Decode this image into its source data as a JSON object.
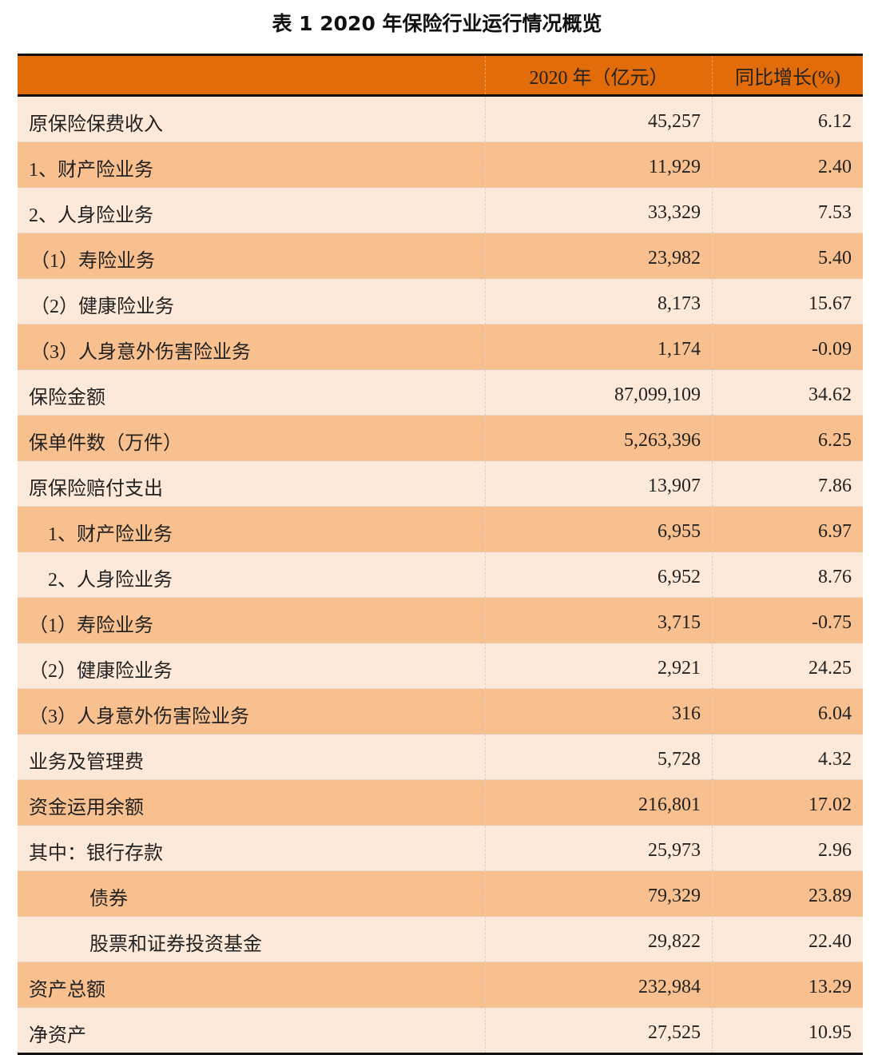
{
  "title": "表 1   2020 年保险行业运行情况概览",
  "columns": [
    "",
    "2020 年（亿元）",
    "同比增长(%)"
  ],
  "colors": {
    "header": "#e36c0a",
    "row_light": "#fde9d9",
    "row_dark": "#f8c08f"
  },
  "rows": [
    {
      "label": "原保险保费收入",
      "value": "45,257",
      "growth": "6.12",
      "indent": 0
    },
    {
      "label": "1、财产险业务",
      "value": "11,929",
      "growth": "2.40",
      "indent": 0
    },
    {
      "label": "2、人身险业务",
      "value": "33,329",
      "growth": "7.53",
      "indent": 0
    },
    {
      "label": "（1）寿险业务",
      "value": "23,982",
      "growth": "5.40",
      "indent": 1
    },
    {
      "label": "（2）健康险业务",
      "value": "8,173",
      "growth": "15.67",
      "indent": 1
    },
    {
      "label": "（3）人身意外伤害险业务",
      "value": "1,174",
      "growth": "-0.09",
      "indent": 1
    },
    {
      "label": "保险金额",
      "value": "87,099,109",
      "growth": "34.62",
      "indent": 0
    },
    {
      "label": "保单件数（万件）",
      "value": "5,263,396",
      "growth": "6.25",
      "indent": 0
    },
    {
      "label": "原保险赔付支出",
      "value": "13,907",
      "growth": "7.86",
      "indent": 0
    },
    {
      "label": "1、财产险业务",
      "value": "6,955",
      "growth": "6.97",
      "indent": 2
    },
    {
      "label": "2、人身险业务",
      "value": "6,952",
      "growth": "8.76",
      "indent": 2
    },
    {
      "label": "（1）寿险业务",
      "value": "3,715",
      "growth": "-0.75",
      "indent": 0
    },
    {
      "label": "（2）健康险业务",
      "value": "2,921",
      "growth": "24.25",
      "indent": 0
    },
    {
      "label": "（3）人身意外伤害险业务",
      "value": "316",
      "growth": "6.04",
      "indent": 0
    },
    {
      "label": "业务及管理费",
      "value": "5,728",
      "growth": "4.32",
      "indent": 0
    },
    {
      "label": "资金运用余额",
      "value": "216,801",
      "growth": "17.02",
      "indent": 0
    },
    {
      "label": "其中：银行存款",
      "value": "25,973",
      "growth": "2.96",
      "indent": 0
    },
    {
      "label": "债券",
      "value": "79,329",
      "growth": "23.89",
      "indent": 3
    },
    {
      "label": "股票和证券投资基金",
      "value": "29,822",
      "growth": "22.40",
      "indent": 3
    },
    {
      "label": "资产总额",
      "value": "232,984",
      "growth": "13.29",
      "indent": 0
    },
    {
      "label": "净资产",
      "value": "27,525",
      "growth": "10.95",
      "indent": 0
    }
  ]
}
